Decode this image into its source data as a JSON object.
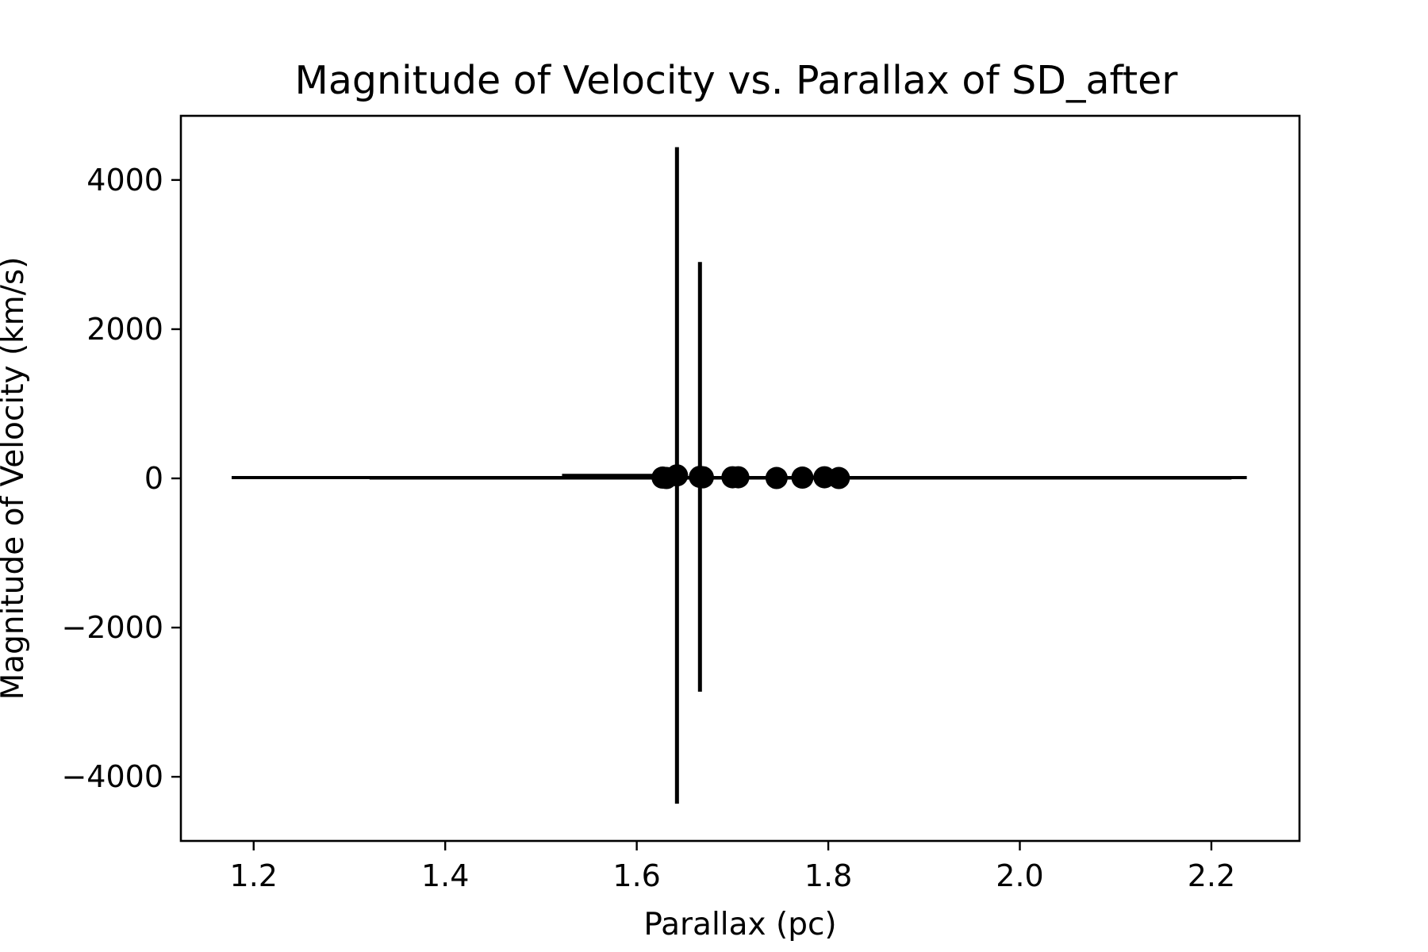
{
  "chart_data": {
    "type": "scatter",
    "title": "Magnitude of Velocity vs. Parallax of SD_after",
    "xlabel": "Parallax (pc)",
    "ylabel": "Magnitude of Velocity (km/s)",
    "xlim": [
      1.124,
      2.292
    ],
    "ylim": [
      -4860,
      4860
    ],
    "xticks": [
      {
        "value": 1.2,
        "label": "1.2"
      },
      {
        "value": 1.4,
        "label": "1.4"
      },
      {
        "value": 1.6,
        "label": "1.6"
      },
      {
        "value": 1.8,
        "label": "1.8"
      },
      {
        "value": 2.0,
        "label": "2.0"
      },
      {
        "value": 2.2,
        "label": "2.2"
      }
    ],
    "yticks": [
      {
        "value": 4000,
        "label": "4000"
      },
      {
        "value": 2000,
        "label": "2000"
      },
      {
        "value": 0,
        "label": "0"
      },
      {
        "value": -2000,
        "label": "−2000"
      },
      {
        "value": -4000,
        "label": "−4000"
      }
    ],
    "grid": false,
    "colors": {
      "marker": "#000000",
      "errorbar": "#000000"
    },
    "points": [
      {
        "x": 1.627,
        "y": 10,
        "xerr_low": 0.45,
        "xerr_high": 0.61,
        "yerr": 0
      },
      {
        "x": 1.631,
        "y": 5,
        "xerr_low": 0.31,
        "xerr_high": 0.59,
        "yerr": 0
      },
      {
        "x": 1.642,
        "y": 40,
        "xerr_low": 0.12,
        "xerr_high": 0.0,
        "yerr": 4400
      },
      {
        "x": 1.666,
        "y": 20,
        "xerr_low": 0.0,
        "xerr_high": 0.0,
        "yerr": 2880
      },
      {
        "x": 1.669,
        "y": 15,
        "xerr_low": 0.0,
        "xerr_high": 0.0,
        "yerr": 0
      },
      {
        "x": 1.7,
        "y": 15,
        "xerr_low": 0.0,
        "xerr_high": 0.0,
        "yerr": 0
      },
      {
        "x": 1.706,
        "y": 15,
        "xerr_low": 0.0,
        "xerr_high": 0.0,
        "yerr": 0
      },
      {
        "x": 1.746,
        "y": 5,
        "xerr_low": 0.0,
        "xerr_high": 0.0,
        "yerr": 0
      },
      {
        "x": 1.773,
        "y": 10,
        "xerr_low": 0.0,
        "xerr_high": 0.0,
        "yerr": 0
      },
      {
        "x": 1.796,
        "y": 15,
        "xerr_low": 0.0,
        "xerr_high": 0.0,
        "yerr": 0
      },
      {
        "x": 1.811,
        "y": 5,
        "xerr_low": 0.0,
        "xerr_high": 0.0,
        "yerr": 0
      }
    ]
  }
}
